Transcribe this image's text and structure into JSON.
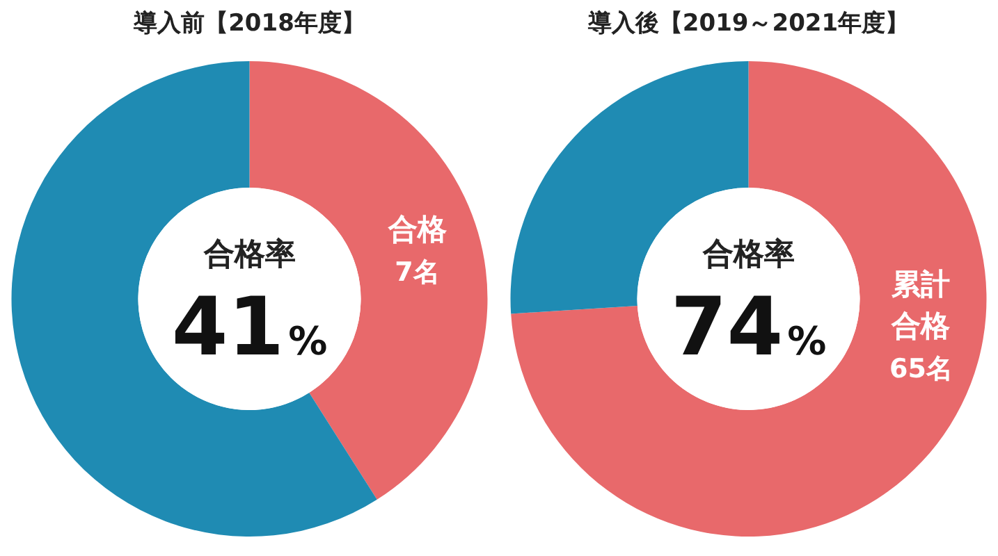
{
  "chart_data": [
    {
      "type": "donut",
      "title": "導入前【2018年度】",
      "categories": [
        "合格",
        null
      ],
      "values": [
        41,
        59
      ],
      "colors": [
        "#e8696b",
        "#1f8bb3"
      ],
      "annotations": [
        "合格率",
        "41%",
        "7名"
      ]
    },
    {
      "type": "donut",
      "title": "導入後【2019～2021年度】",
      "categories": [
        "累計合格",
        null
      ],
      "values": [
        74,
        26
      ],
      "colors": [
        "#e8696b",
        "#1f8bb3"
      ],
      "annotations": [
        "合格率",
        "74%",
        "65名"
      ]
    }
  ]
}
